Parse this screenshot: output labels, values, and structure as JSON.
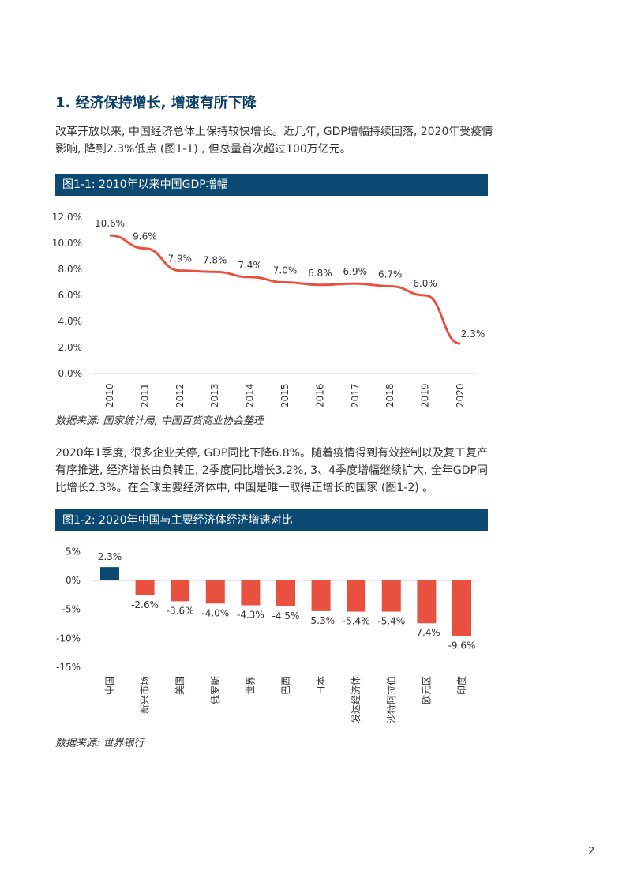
{
  "heading": "1. 经济保持增长, 增速有所下降",
  "para1": "改革开放以来, 中国经济总体上保持较快增长。近几年, GDP增幅持续回落, 2020年受疫情影响, 降到2.3%低点 (图1-1) , 但总量首次超过100万亿元。",
  "para2": "2020年1季度, 很多企业关停, GDP同比下降6.8%。随着疫情得到有效控制以及复工复产有序推进, 经济增长由负转正, 2季度同比增长3.2%, 3、4季度增幅继续扩大, 全年GDP同比增长2.3%。在全球主要经济体中, 中国是唯一取得正增长的国家 (图1-2) 。",
  "page_number": "2",
  "colors": {
    "header": "#0b4872",
    "line": "#e8513f",
    "china_bar": "#0b4872",
    "other_bar": "#e8513f"
  },
  "chart_data": [
    {
      "type": "line",
      "title": "图1-1: 2010年以来中国GDP增幅",
      "source": "数据来源: 国家统计局, 中国百货商业协会整理",
      "categories": [
        "2010",
        "2011",
        "2012",
        "2013",
        "2014",
        "2015",
        "2016",
        "2017",
        "2018",
        "2019",
        "2020"
      ],
      "values": [
        10.6,
        9.6,
        7.9,
        7.8,
        7.4,
        7.0,
        6.8,
        6.9,
        6.7,
        6.0,
        2.3
      ],
      "labels": [
        "10.6%",
        "9.6%",
        "7.9%",
        "7.8%",
        "7.4%",
        "7.0%",
        "6.8%",
        "6.9%",
        "6.7%",
        "6.0%",
        "2.3%"
      ],
      "yticks": [
        "0.0%",
        "2.0%",
        "4.0%",
        "6.0%",
        "8.0%",
        "10.0%",
        "12.0%"
      ],
      "ylim": [
        0,
        12
      ],
      "grid": false
    },
    {
      "type": "bar",
      "title": "图1-2: 2020年中国与主要经济体经济增速对比",
      "source": "数据来源: 世界银行",
      "categories": [
        "中国",
        "新兴市场",
        "美国",
        "俄罗斯",
        "世界",
        "巴西",
        "日本",
        "发达经济体",
        "沙特阿拉伯",
        "欧元区",
        "印度"
      ],
      "values": [
        2.3,
        -2.6,
        -3.6,
        -4.0,
        -4.3,
        -4.5,
        -5.3,
        -5.4,
        -5.4,
        -7.4,
        -9.6
      ],
      "labels": [
        "2.3%",
        "-2.6%",
        "-3.6%",
        "-4.0%",
        "-4.3%",
        "-4.5%",
        "-5.3%",
        "-5.4%",
        "-5.4%",
        "-7.4%",
        "-9.6%"
      ],
      "yticks": [
        "5%",
        "0%",
        "-5%",
        "-10%",
        "-15%"
      ],
      "ylim": [
        -15,
        5
      ],
      "grid": false
    }
  ]
}
